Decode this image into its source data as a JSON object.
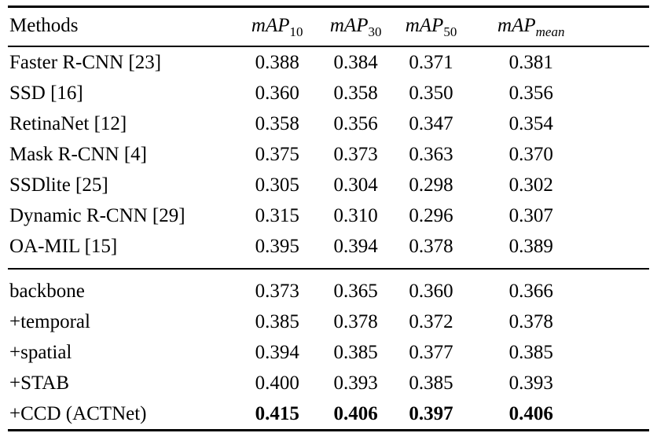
{
  "table": {
    "header": {
      "methods_label": "Methods",
      "columns": [
        {
          "base": "mAP",
          "sub": "10"
        },
        {
          "base": "mAP",
          "sub": "30"
        },
        {
          "base": "mAP",
          "sub": "50"
        },
        {
          "base": "mAP",
          "sub": "mean"
        }
      ]
    },
    "sections": [
      {
        "rows": [
          {
            "method": "Faster R-CNN [23]",
            "values": [
              "0.388",
              "0.384",
              "0.371",
              "0.381"
            ],
            "bold": false
          },
          {
            "method": "SSD [16]",
            "values": [
              "0.360",
              "0.358",
              "0.350",
              "0.356"
            ],
            "bold": false
          },
          {
            "method": "RetinaNet [12]",
            "values": [
              "0.358",
              "0.356",
              "0.347",
              "0.354"
            ],
            "bold": false
          },
          {
            "method": "Mask R-CNN [4]",
            "values": [
              "0.375",
              "0.373",
              "0.363",
              "0.370"
            ],
            "bold": false
          },
          {
            "method": "SSDlite [25]",
            "values": [
              "0.305",
              "0.304",
              "0.298",
              "0.302"
            ],
            "bold": false
          },
          {
            "method": "Dynamic R-CNN [29]",
            "values": [
              "0.315",
              "0.310",
              "0.296",
              "0.307"
            ],
            "bold": false
          },
          {
            "method": "OA-MIL [15]",
            "values": [
              "0.395",
              "0.394",
              "0.378",
              "0.389"
            ],
            "bold": false
          }
        ]
      },
      {
        "rows": [
          {
            "method": "backbone",
            "values": [
              "0.373",
              "0.365",
              "0.360",
              "0.366"
            ],
            "bold": false
          },
          {
            "method": "+temporal",
            "values": [
              "0.385",
              "0.378",
              "0.372",
              "0.378"
            ],
            "bold": false
          },
          {
            "method": "+spatial",
            "values": [
              "0.394",
              "0.385",
              "0.377",
              "0.385"
            ],
            "bold": false
          },
          {
            "method": "+STAB",
            "values": [
              "0.400",
              "0.393",
              "0.385",
              "0.393"
            ],
            "bold": false
          },
          {
            "method": "+CCD (ACTNet)",
            "values": [
              "0.415",
              "0.406",
              "0.397",
              "0.406"
            ],
            "bold": true
          }
        ]
      }
    ]
  }
}
